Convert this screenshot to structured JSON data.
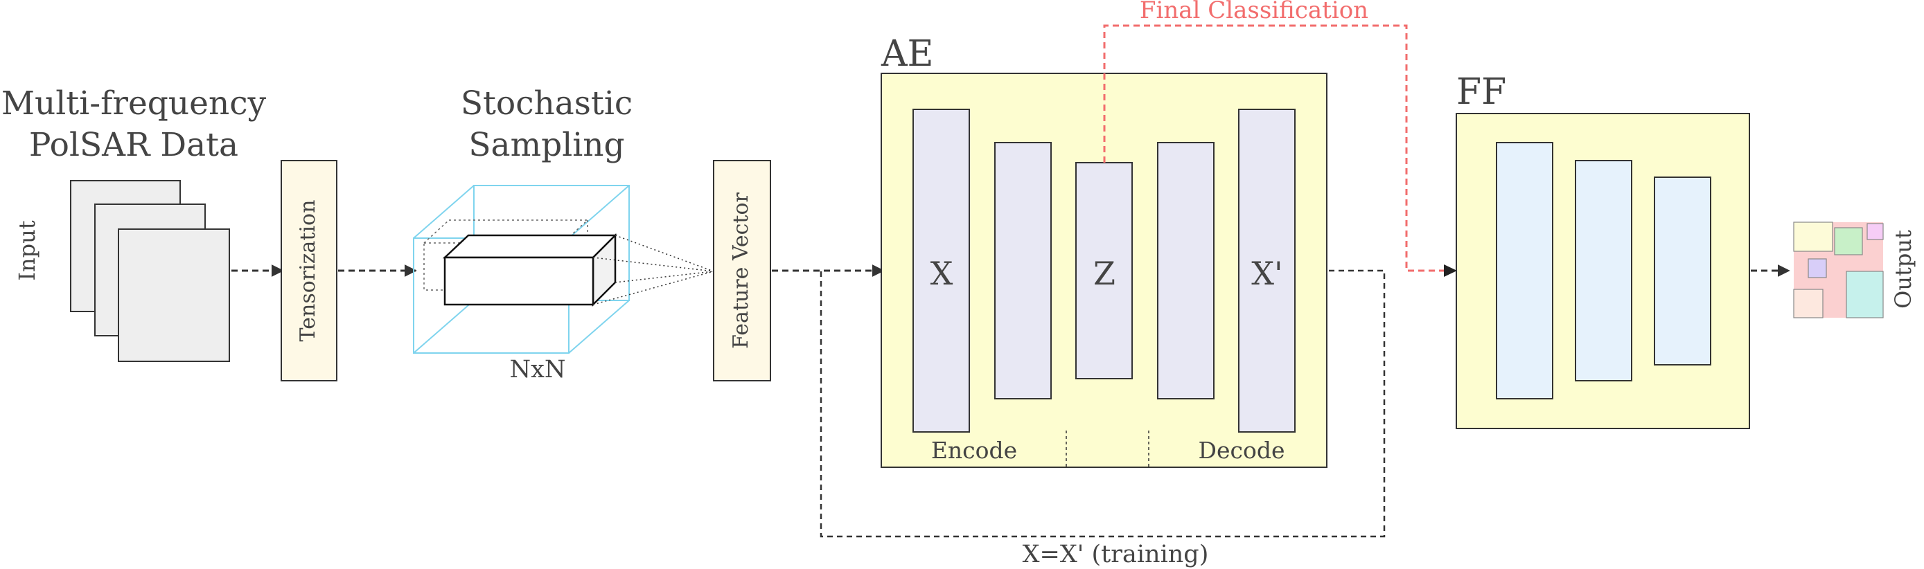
{
  "input_block": {
    "title_line1": "Multi-frequency",
    "title_line2": "PolSAR Data",
    "side_label": "Input"
  },
  "tensorization": {
    "label": "Tensorization"
  },
  "sampling": {
    "title_line1": "Stochastic",
    "title_line2": "Sampling",
    "window_label": "NxN"
  },
  "feature_vector": {
    "label": "Feature Vector"
  },
  "autoencoder": {
    "title": "AE",
    "input_label": "X",
    "latent_label": "Z",
    "output_label": "X'",
    "encode_label": "Encode",
    "decode_label": "Decode"
  },
  "feedforward": {
    "title": "FF"
  },
  "output_block": {
    "side_label": "Output"
  },
  "links": {
    "final_classification": "Final Classification",
    "training_loop": "X=X' (training)"
  },
  "colors": {
    "panel_fill": "#fdfdd0",
    "ae_layer_fill": "#e8e8f4",
    "ff_layer_fill": "#e6f2fc",
    "accent_red": "#f26d6d",
    "sampling_cube": "#7fd4ee",
    "text_dark": "#3f3f3f"
  }
}
